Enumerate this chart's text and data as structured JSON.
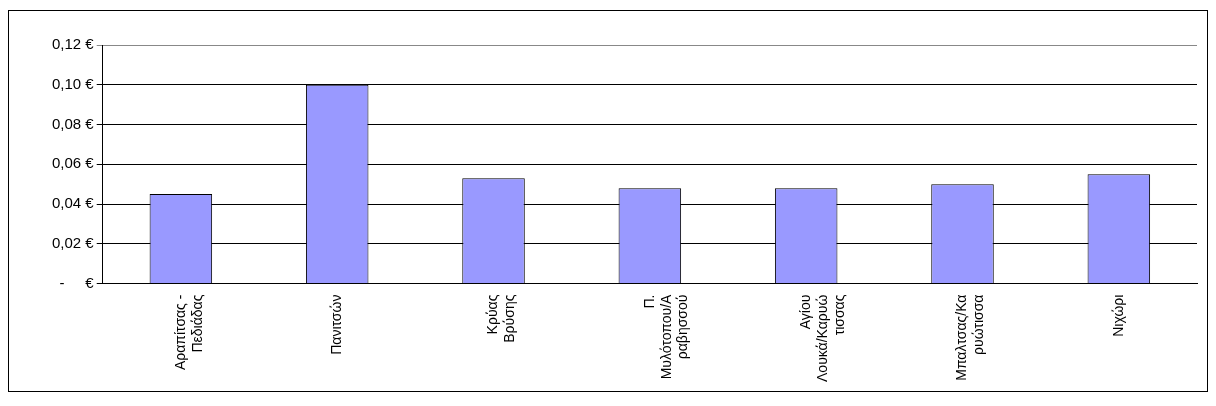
{
  "chart_data": {
    "type": "bar",
    "categories": [
      "Αραπίτσας - Πεδιάδας",
      "Πανιτσών",
      "Κρύας Βρύσης",
      "Π. Μυλότοπου/Αραβησσού",
      "Αγίου Λουκά/Καρυώτισσας",
      "Μπαλτσας/Καρυώτισσα",
      "Νιχώρι"
    ],
    "values": [
      0.045,
      0.1,
      0.053,
      0.048,
      0.048,
      0.05,
      0.055
    ],
    "color": "#9999ff",
    "ylim": [
      0,
      0.12
    ],
    "yticks": [
      {
        "value": 0,
        "label": "-     €"
      },
      {
        "value": 0.02,
        "label": "0,02 €"
      },
      {
        "value": 0.04,
        "label": "0,04 €"
      },
      {
        "value": 0.06,
        "label": "0,06 €"
      },
      {
        "value": 0.08,
        "label": "0,08 €"
      },
      {
        "value": 0.1,
        "label": "0,10 €"
      },
      {
        "value": 0.12,
        "label": "0,12 €"
      }
    ],
    "grid": "y",
    "legend": false
  }
}
